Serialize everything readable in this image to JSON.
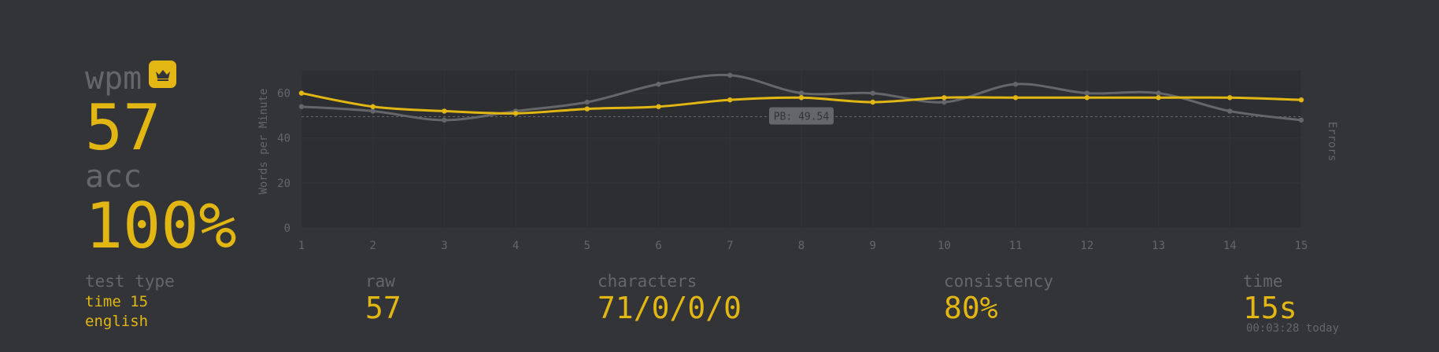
{
  "stats": {
    "wpm_label": "wpm",
    "wpm_value": "57",
    "acc_label": "acc",
    "acc_value": "100%",
    "test_type_label": "test type",
    "test_type_lines": [
      "time 15",
      "english"
    ],
    "raw_label": "raw",
    "raw_value": "57",
    "characters_label": "characters",
    "characters_value": "71/0/0/0",
    "consistency_label": "consistency",
    "consistency_value": "80%",
    "time_label": "time",
    "time_value": "15s",
    "time_sub": "00:03:28 today"
  },
  "icons": {
    "pb_badge": "crown-icon"
  },
  "colors": {
    "accent": "#e2b714",
    "sub": "#646669",
    "bg": "#323437",
    "plot_bg": "#2c2e31"
  },
  "chart_data": {
    "type": "line",
    "ylabel": "Words per Minute",
    "y2label": "Errors",
    "x": [
      1,
      2,
      3,
      4,
      5,
      6,
      7,
      8,
      9,
      10,
      11,
      12,
      13,
      14,
      15
    ],
    "y_ticks": [
      0,
      20,
      40,
      60
    ],
    "ylim": [
      0,
      70
    ],
    "series": [
      {
        "color": "#e2b714",
        "values": [
          60,
          54,
          52,
          51,
          53,
          54,
          57,
          58,
          56,
          58,
          58,
          58,
          58,
          58,
          57
        ]
      },
      {
        "color": "#646669",
        "values": [
          54,
          52,
          48,
          52,
          56,
          64,
          68,
          60,
          60,
          56,
          64,
          60,
          60,
          52,
          48
        ]
      }
    ],
    "annotation": {
      "label": "PB: 49.54",
      "value": 49.54
    },
    "grid": true
  }
}
